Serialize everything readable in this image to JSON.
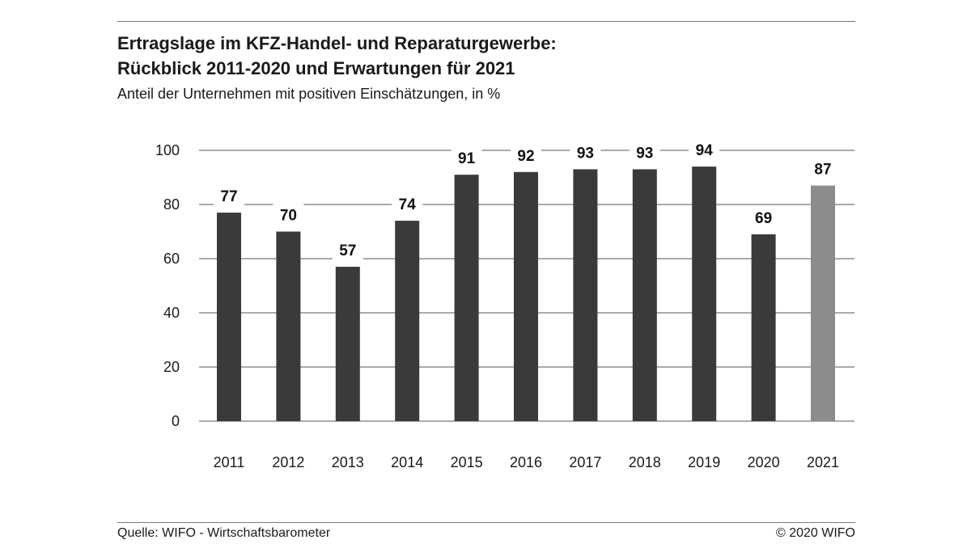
{
  "header": {
    "title_line1": "Ertragslage im KFZ-Handel- und Reparaturgewerbe:",
    "title_line2": "Rückblick 2011-2020 und Erwartungen für 2021",
    "subtitle": "Anteil der Unternehmen mit positiven Einschätzungen, in %"
  },
  "footer": {
    "source": "Quelle: WIFO - Wirtschaftsbarometer",
    "copyright": "© 2020 WIFO"
  },
  "chart_data": {
    "type": "bar",
    "title": "Ertragslage im KFZ-Handel- und Reparaturgewerbe: Rückblick 2011-2020 und Erwartungen für 2021",
    "subtitle": "Anteil der Unternehmen mit positiven Einschätzungen, in %",
    "xlabel": "",
    "ylabel": "",
    "categories": [
      "2011",
      "2012",
      "2013",
      "2014",
      "2015",
      "2016",
      "2017",
      "2018",
      "2019",
      "2020",
      "2021"
    ],
    "values": [
      77,
      70,
      57,
      74,
      91,
      92,
      93,
      93,
      94,
      69,
      87
    ],
    "data_labels": [
      "77",
      "70",
      "57",
      "74",
      "91",
      "92",
      "93",
      "93",
      "94",
      "69",
      "87"
    ],
    "ylim": [
      0,
      100
    ],
    "yticks": [
      0,
      20,
      40,
      60,
      80,
      100
    ],
    "ytick_labels": [
      "0",
      "20",
      "40",
      "60",
      "80",
      "100"
    ],
    "grid": true,
    "legend": "none",
    "colors": {
      "actual": "#3a3a3a",
      "expectation": "#8c8c8c",
      "grid": "#555555",
      "label_background": "#ffffff"
    },
    "highlight_category": "2021"
  }
}
